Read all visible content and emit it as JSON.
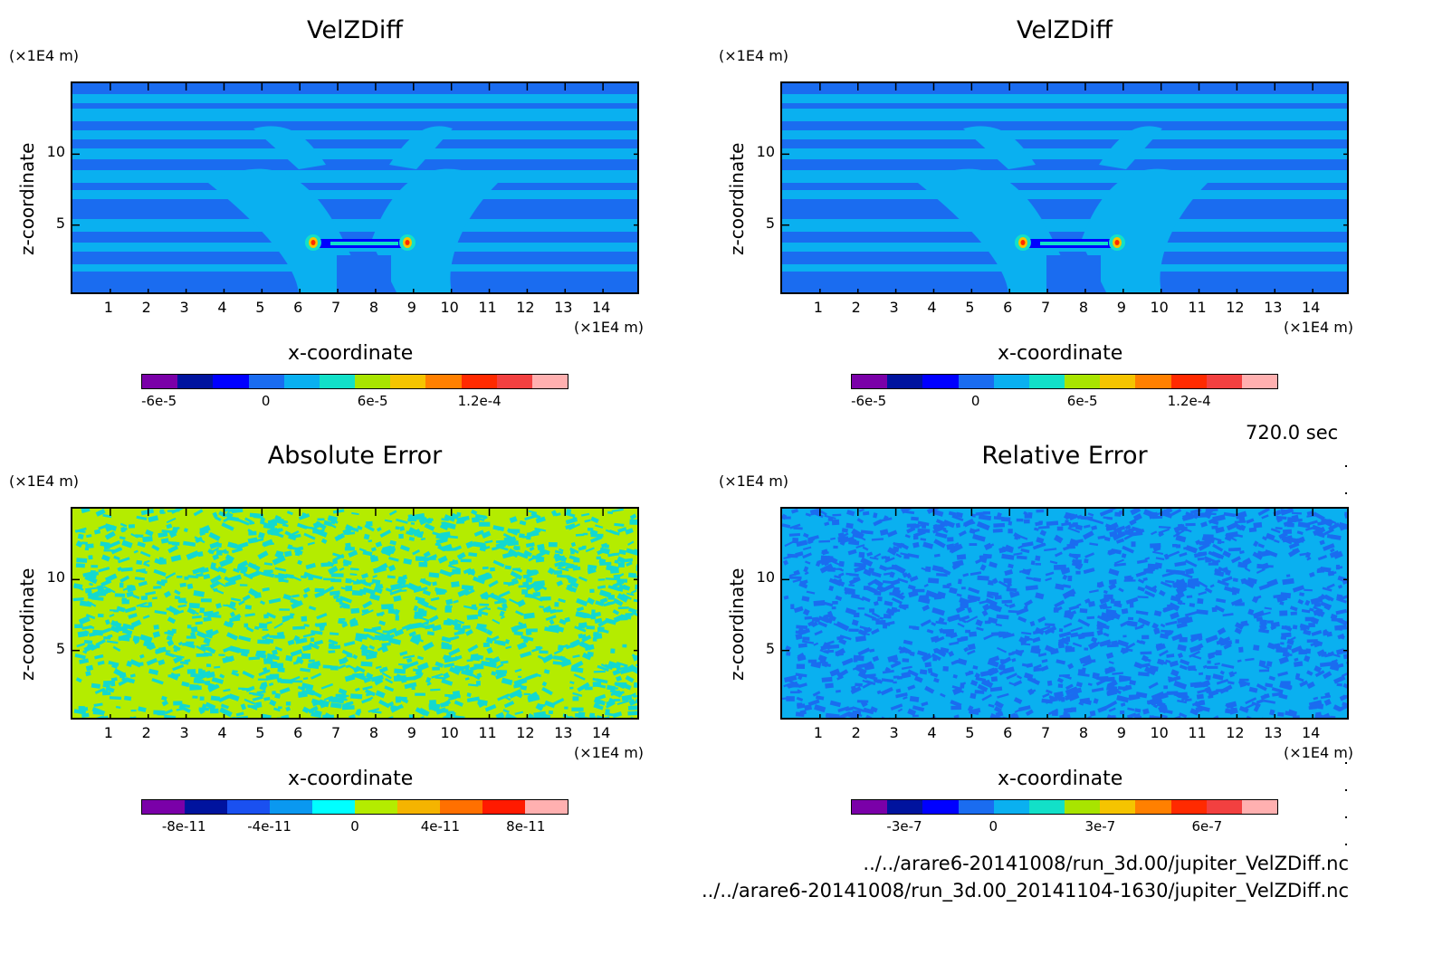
{
  "charts": [
    {
      "id": "tl",
      "title": "VelZDiff",
      "xlabel": "x-coordinate",
      "ylabel": "z-coordinate",
      "xunit": "(×1E4 m)",
      "yunit": "(×1E4 m)",
      "pattern": "velz"
    },
    {
      "id": "tr",
      "title": "VelZDiff",
      "xlabel": "x-coordinate",
      "ylabel": "z-coordinate",
      "xunit": "(×1E4 m)",
      "yunit": "(×1E4 m)",
      "pattern": "velz"
    },
    {
      "id": "bl",
      "title": "Absolute Error",
      "xlabel": "x-coordinate",
      "ylabel": "z-coordinate",
      "xunit": "(×1E4 m)",
      "yunit": "(×1E4 m)",
      "pattern": "abs"
    },
    {
      "id": "br",
      "title": "Relative Error",
      "xlabel": "x-coordinate",
      "ylabel": "z-coordinate",
      "xunit": "(×1E4 m)",
      "yunit": "(×1E4 m)",
      "pattern": "rel"
    }
  ],
  "chart_data": [
    {
      "type": "heatmap",
      "title": "VelZDiff",
      "xlabel": "x-coordinate",
      "ylabel": "z-coordinate",
      "x_ticks": [
        "1",
        "2",
        "3",
        "4",
        "5",
        "6",
        "7",
        "8",
        "9",
        "10",
        "11",
        "12",
        "13",
        "14"
      ],
      "y_ticks": [
        "5",
        "10"
      ],
      "xlim": [
        0,
        15
      ],
      "ylim": [
        0,
        15
      ],
      "colorbar_ticks": [
        "-6e-5",
        "0",
        "6e-5",
        "1.2e-4"
      ],
      "colorbar_colors": [
        "#7a00a8",
        "#00139e",
        "#0000ff",
        "#1a6cf0",
        "#0ab0f0",
        "#12e0c8",
        "#a8e400",
        "#f5c400",
        "#ff8000",
        "#ff2a00",
        "#f24040",
        "#ffb0b0"
      ]
    },
    {
      "type": "heatmap",
      "title": "VelZDiff",
      "xlabel": "x-coordinate",
      "ylabel": "z-coordinate",
      "x_ticks": [
        "1",
        "2",
        "3",
        "4",
        "5",
        "6",
        "7",
        "8",
        "9",
        "10",
        "11",
        "12",
        "13",
        "14"
      ],
      "y_ticks": [
        "5",
        "10"
      ],
      "xlim": [
        0,
        15
      ],
      "ylim": [
        0,
        15
      ],
      "colorbar_ticks": [
        "-6e-5",
        "0",
        "6e-5",
        "1.2e-4"
      ],
      "colorbar_colors": [
        "#7a00a8",
        "#00139e",
        "#0000ff",
        "#1a6cf0",
        "#0ab0f0",
        "#12e0c8",
        "#a8e400",
        "#f5c400",
        "#ff8000",
        "#ff2a00",
        "#f24040",
        "#ffb0b0"
      ]
    },
    {
      "type": "heatmap",
      "title": "Absolute Error",
      "xlabel": "x-coordinate",
      "ylabel": "z-coordinate",
      "x_ticks": [
        "1",
        "2",
        "3",
        "4",
        "5",
        "6",
        "7",
        "8",
        "9",
        "10",
        "11",
        "12",
        "13",
        "14"
      ],
      "y_ticks": [
        "5",
        "10"
      ],
      "xlim": [
        0,
        15
      ],
      "ylim": [
        0,
        15
      ],
      "colorbar_ticks": [
        "-8e-11",
        "-4e-11",
        "0",
        "4e-11",
        "8e-11"
      ],
      "colorbar_colors": [
        "#7a00a8",
        "#00139e",
        "#1a50f0",
        "#0a98f0",
        "#00ffff",
        "#b4ec00",
        "#f5b400",
        "#ff7000",
        "#ff1a00",
        "#ffb0b0"
      ]
    },
    {
      "type": "heatmap",
      "title": "Relative Error",
      "xlabel": "x-coordinate",
      "ylabel": "z-coordinate",
      "x_ticks": [
        "1",
        "2",
        "3",
        "4",
        "5",
        "6",
        "7",
        "8",
        "9",
        "10",
        "11",
        "12",
        "13",
        "14"
      ],
      "y_ticks": [
        "5",
        "10"
      ],
      "xlim": [
        0,
        15
      ],
      "ylim": [
        0,
        15
      ],
      "colorbar_ticks": [
        "-3e-7",
        "0",
        "3e-7",
        "6e-7"
      ],
      "colorbar_colors": [
        "#7a00a8",
        "#00139e",
        "#0000ff",
        "#1a6cf0",
        "#0ab0f0",
        "#12e0c8",
        "#a8e400",
        "#f5c400",
        "#ff8000",
        "#ff2a00",
        "#f24040",
        "#ffb0b0"
      ]
    }
  ],
  "time_label": "720.0 sec",
  "file1": "../../arare6-20141008/run_3d.00/jupiter_VelZDiff.nc",
  "file2": "../../arare6-20141008/run_3d.00_20141104-1630/jupiter_VelZDiff.nc"
}
